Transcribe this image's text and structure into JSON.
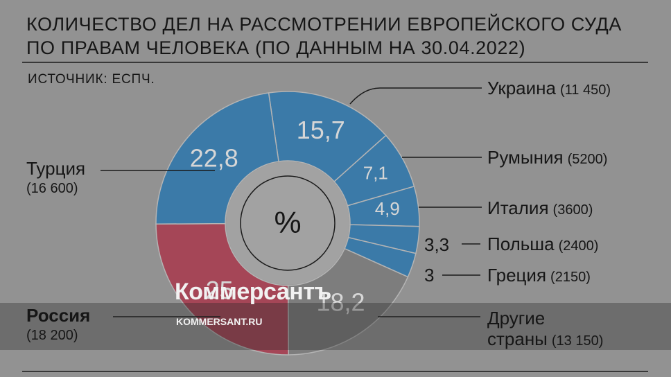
{
  "chart_data": {
    "type": "donut",
    "title": "КОЛИЧЕСТВО ДЕЛ НА РАССМОТРЕНИИ ЕВРОПЕЙСКОГО СУДА ПО ПРАВАМ ЧЕЛОВЕКА (ПО ДАННЫМ НА 30.04.2022)",
    "source": "ИСТОЧНИК: ЕСПЧ.",
    "center_label": "%",
    "categories": [
      "Украина",
      "Румыния",
      "Италия",
      "Польша",
      "Греция",
      "Другие страны",
      "Россия",
      "Турция"
    ],
    "values": [
      15.7,
      7.1,
      4.9,
      3.3,
      3,
      18.2,
      25,
      22.8
    ],
    "value_labels": [
      "15,7",
      "7,1",
      "4,9",
      "3,3",
      "3",
      "18,2",
      "25",
      "22,8"
    ],
    "count_labels": [
      "(11 450)",
      "(5200)",
      "(3600)",
      "(2400)",
      "(2150)",
      "(13 150)",
      "(18 200)",
      "(16 600)"
    ],
    "colors": [
      "#3b7aa8",
      "#3b7aa8",
      "#3b7aa8",
      "#3b7aa8",
      "#3b7aa8",
      "#7d7d7d",
      "#a54657",
      "#3b7aa8"
    ]
  },
  "watermark": {
    "brand": "Коммерсантъ",
    "url": "KOMMERSANT.RU"
  }
}
